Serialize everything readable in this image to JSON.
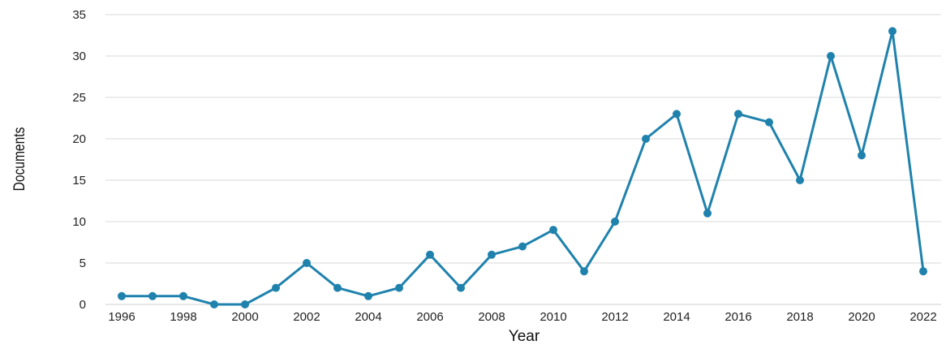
{
  "chart_data": {
    "type": "line",
    "xlabel": "Year",
    "ylabel": "Documents",
    "ylim": [
      0,
      35
    ],
    "yticks": [
      0,
      5,
      10,
      15,
      20,
      25,
      30,
      35
    ],
    "xticks": [
      1996,
      1998,
      2000,
      2002,
      2004,
      2006,
      2008,
      2010,
      2012,
      2014,
      2016,
      2018,
      2020,
      2022
    ],
    "x": [
      1996,
      1997,
      1998,
      1999,
      2000,
      2001,
      2002,
      2003,
      2004,
      2005,
      2006,
      2007,
      2008,
      2009,
      2010,
      2011,
      2012,
      2013,
      2014,
      2015,
      2016,
      2017,
      2018,
      2019,
      2020,
      2021,
      2022
    ],
    "series": [
      {
        "values": [
          1,
          1,
          1,
          0,
          0,
          2,
          5,
          2,
          1,
          2,
          6,
          2,
          6,
          7,
          9,
          4,
          10,
          20,
          23,
          11,
          23,
          22,
          15,
          30,
          18,
          33,
          4
        ],
        "color": "#1f82ad"
      }
    ],
    "grid": true,
    "legend": "none"
  }
}
